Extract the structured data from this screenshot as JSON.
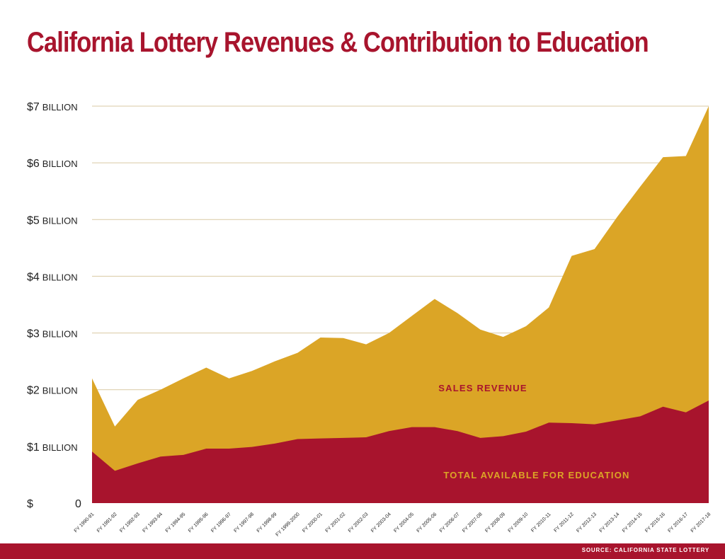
{
  "title": "California Lottery Revenues & Contribution to Education",
  "source": "SOURCE: CALIFORNIA STATE LOTTERY",
  "colors": {
    "sales_revenue": "#dba526",
    "education": "#a8142d",
    "grid": "#d9c9a3",
    "axis_text": "#222222"
  },
  "chart_data": {
    "type": "area",
    "stacked": false,
    "x": [
      "FY 1990-91",
      "FY 1991-92",
      "FY 1992-93",
      "FY 1993-94",
      "FY 1994-95",
      "FY 1995-96",
      "FY 1996-97",
      "FY 1997-98",
      "FY 1998-99",
      "FY 1999-2000",
      "FY 2000-01",
      "FY 2001-02",
      "FY 2002-03",
      "FY 2003-04",
      "FY 2004-05",
      "FY 2005-06",
      "FY 2006-07",
      "FY 2007-08",
      "FY 2008-09",
      "FY 2009-10",
      "FY 2010-11",
      "FY 2011-12",
      "FY 2012-13",
      "FY 2013-14",
      "FY 2014-15",
      "FY 2015-16",
      "FY 2016-17",
      "FY 2017-18"
    ],
    "series": [
      {
        "name": "SALES REVENUE",
        "values": [
          2.2,
          1.35,
          1.82,
          2.0,
          2.2,
          2.39,
          2.2,
          2.33,
          2.5,
          2.65,
          2.92,
          2.91,
          2.8,
          3.0,
          3.3,
          3.6,
          3.35,
          3.06,
          2.93,
          3.12,
          3.45,
          4.36,
          4.48,
          5.05,
          5.58,
          6.1,
          6.12,
          7.0
        ]
      },
      {
        "name": "TOTAL AVAILABLE FOR EDUCATION",
        "values": [
          0.91,
          0.57,
          0.7,
          0.82,
          0.85,
          0.96,
          0.96,
          0.99,
          1.05,
          1.13,
          1.14,
          1.15,
          1.16,
          1.27,
          1.34,
          1.34,
          1.27,
          1.15,
          1.18,
          1.26,
          1.42,
          1.41,
          1.39,
          1.46,
          1.53,
          1.7,
          1.6,
          1.81
        ]
      }
    ],
    "ylim": [
      0,
      7
    ],
    "y_ticks": [
      {
        "value": 7,
        "amount": "$7",
        "unit": "BILLION"
      },
      {
        "value": 6,
        "amount": "$6",
        "unit": "BILLION"
      },
      {
        "value": 5,
        "amount": "$5",
        "unit": "BILLION"
      },
      {
        "value": 4,
        "amount": "$4",
        "unit": "BILLION"
      },
      {
        "value": 3,
        "amount": "$3",
        "unit": "BILLION"
      },
      {
        "value": 2,
        "amount": "$2",
        "unit": "BILLION"
      },
      {
        "value": 1,
        "amount": "$1",
        "unit": "BILLION"
      },
      {
        "value": 0,
        "amount": "$",
        "unit": "0"
      }
    ],
    "grid": true,
    "xlabel": "",
    "ylabel": ""
  }
}
